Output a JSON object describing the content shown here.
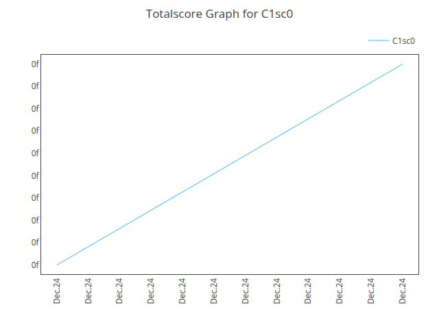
{
  "chart_data": {
    "type": "line",
    "title": "Totalscore Graph for C1sc0",
    "categories": [
      "Dec.24",
      "Dec.24",
      "Dec.24",
      "Dec.24",
      "Dec.24",
      "Dec.24",
      "Dec.24",
      "Dec.24",
      "Dec.24",
      "Dec.24",
      "Dec.24",
      "Dec.24"
    ],
    "series": [
      {
        "name": "C1sc0",
        "color": "#87CEEB",
        "values": [
          0,
          1,
          2,
          3,
          4,
          5,
          6,
          7,
          8,
          9,
          10,
          11
        ]
      }
    ],
    "ylim": [
      -0.5,
      11.5
    ],
    "yticks": [
      {
        "value": 0,
        "label": "0f"
      },
      {
        "value": 1.2222222222222223,
        "label": "0f"
      },
      {
        "value": 2.4444444444444446,
        "label": "0f"
      },
      {
        "value": 3.666666666666667,
        "label": "0f"
      },
      {
        "value": 4.888888888888889,
        "label": "0f"
      },
      {
        "value": 6.111111111111112,
        "label": "0f"
      },
      {
        "value": 7.333333333333334,
        "label": "0f"
      },
      {
        "value": 8.555555555555557,
        "label": "0f"
      },
      {
        "value": 9.777777777777779,
        "label": "0f"
      },
      {
        "value": 11,
        "label": "0f"
      }
    ],
    "grid": false,
    "legend": "upper right"
  }
}
